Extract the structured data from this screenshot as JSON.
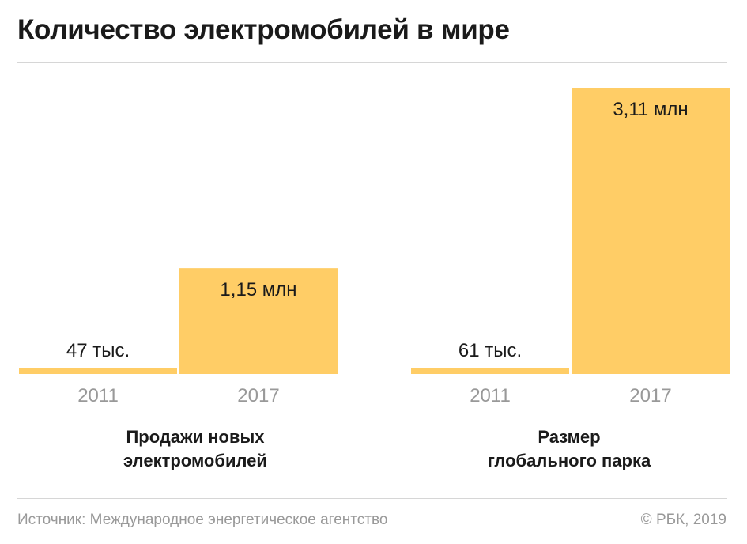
{
  "title": "Количество электромобилей в мире",
  "footer": {
    "source": "Источник: Международное энергетическое агентство",
    "copyright": "© РБК, 2019"
  },
  "colors": {
    "bar": "#ffcd66",
    "text": "#1a1a1a",
    "muted": "#999999",
    "rule": "#d6d6d6"
  },
  "chart_data": [
    {
      "type": "bar",
      "title": "Продажи новых электромобилей",
      "categories": [
        "2011",
        "2017"
      ],
      "values": [
        0.047,
        1.15
      ],
      "value_labels": [
        "47 тыс.",
        "1,15 млн"
      ],
      "unit": "млн"
    },
    {
      "type": "bar",
      "title": "Размер глобального парка",
      "categories": [
        "2011",
        "2017"
      ],
      "values": [
        0.061,
        3.11
      ],
      "value_labels": [
        "61 тыс.",
        "3,11 млн"
      ],
      "unit": "млн"
    }
  ]
}
